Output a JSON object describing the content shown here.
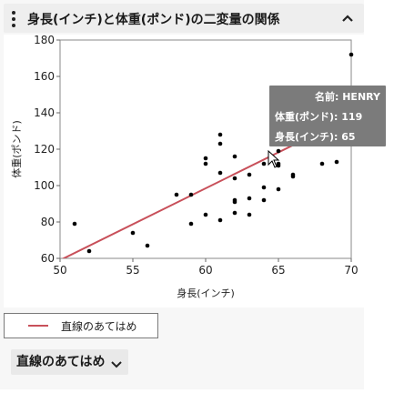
{
  "header": {
    "title": "身長(インチ)と体重(ポンド)の二変量の関係",
    "menu_icon": "kebab-menu-icon",
    "collapse_icon": "chevron-up-icon"
  },
  "chart_data": {
    "type": "scatter",
    "xlabel": "身長(インチ)",
    "ylabel": "体重(ポンド)",
    "xlim": [
      50,
      70
    ],
    "ylim": [
      60,
      180
    ],
    "xticks": [
      50,
      55,
      60,
      65,
      70
    ],
    "yticks": [
      60,
      80,
      100,
      120,
      140,
      160,
      180
    ],
    "grid": false,
    "points": [
      {
        "x": 51,
        "y": 79
      },
      {
        "x": 52,
        "y": 64
      },
      {
        "x": 55,
        "y": 74
      },
      {
        "x": 56,
        "y": 67
      },
      {
        "x": 58,
        "y": 95
      },
      {
        "x": 59,
        "y": 95
      },
      {
        "x": 59,
        "y": 79
      },
      {
        "x": 60,
        "y": 115
      },
      {
        "x": 60,
        "y": 112
      },
      {
        "x": 60,
        "y": 84
      },
      {
        "x": 61,
        "y": 128
      },
      {
        "x": 61,
        "y": 123
      },
      {
        "x": 61,
        "y": 107
      },
      {
        "x": 61,
        "y": 81
      },
      {
        "x": 62,
        "y": 116
      },
      {
        "x": 62,
        "y": 104
      },
      {
        "x": 62,
        "y": 92
      },
      {
        "x": 62,
        "y": 91
      },
      {
        "x": 62,
        "y": 85
      },
      {
        "x": 63,
        "y": 106
      },
      {
        "x": 63,
        "y": 93
      },
      {
        "x": 63,
        "y": 84
      },
      {
        "x": 64,
        "y": 112
      },
      {
        "x": 64,
        "y": 99
      },
      {
        "x": 64,
        "y": 92
      },
      {
        "x": 65,
        "y": 142
      },
      {
        "x": 65,
        "y": 119
      },
      {
        "x": 65,
        "y": 112
      },
      {
        "x": 65,
        "y": 111
      },
      {
        "x": 65,
        "y": 98
      },
      {
        "x": 66,
        "y": 106
      },
      {
        "x": 66,
        "y": 105
      },
      {
        "x": 68,
        "y": 112
      },
      {
        "x": 69,
        "y": 113
      },
      {
        "x": 70,
        "y": 172
      }
    ],
    "fit_line": {
      "name": "直線のあてはめ",
      "x": [
        50,
        70
      ],
      "y": [
        59,
        138
      ],
      "color": "#c8505a"
    },
    "legend_position": "bottom-left"
  },
  "tooltip": {
    "name_label": "名前: HENRY",
    "weight_label": "体重(ポンド): 119",
    "height_label": "身長(インチ): 65"
  },
  "legend": {
    "label": "直線のあてはめ"
  },
  "fit_button": {
    "label": "直線のあてはめ",
    "icon": "chevron-down-icon"
  },
  "colors": {
    "fit_line": "#c8505a",
    "point": "#000000",
    "tooltip_bg": "#7b7b7b"
  }
}
